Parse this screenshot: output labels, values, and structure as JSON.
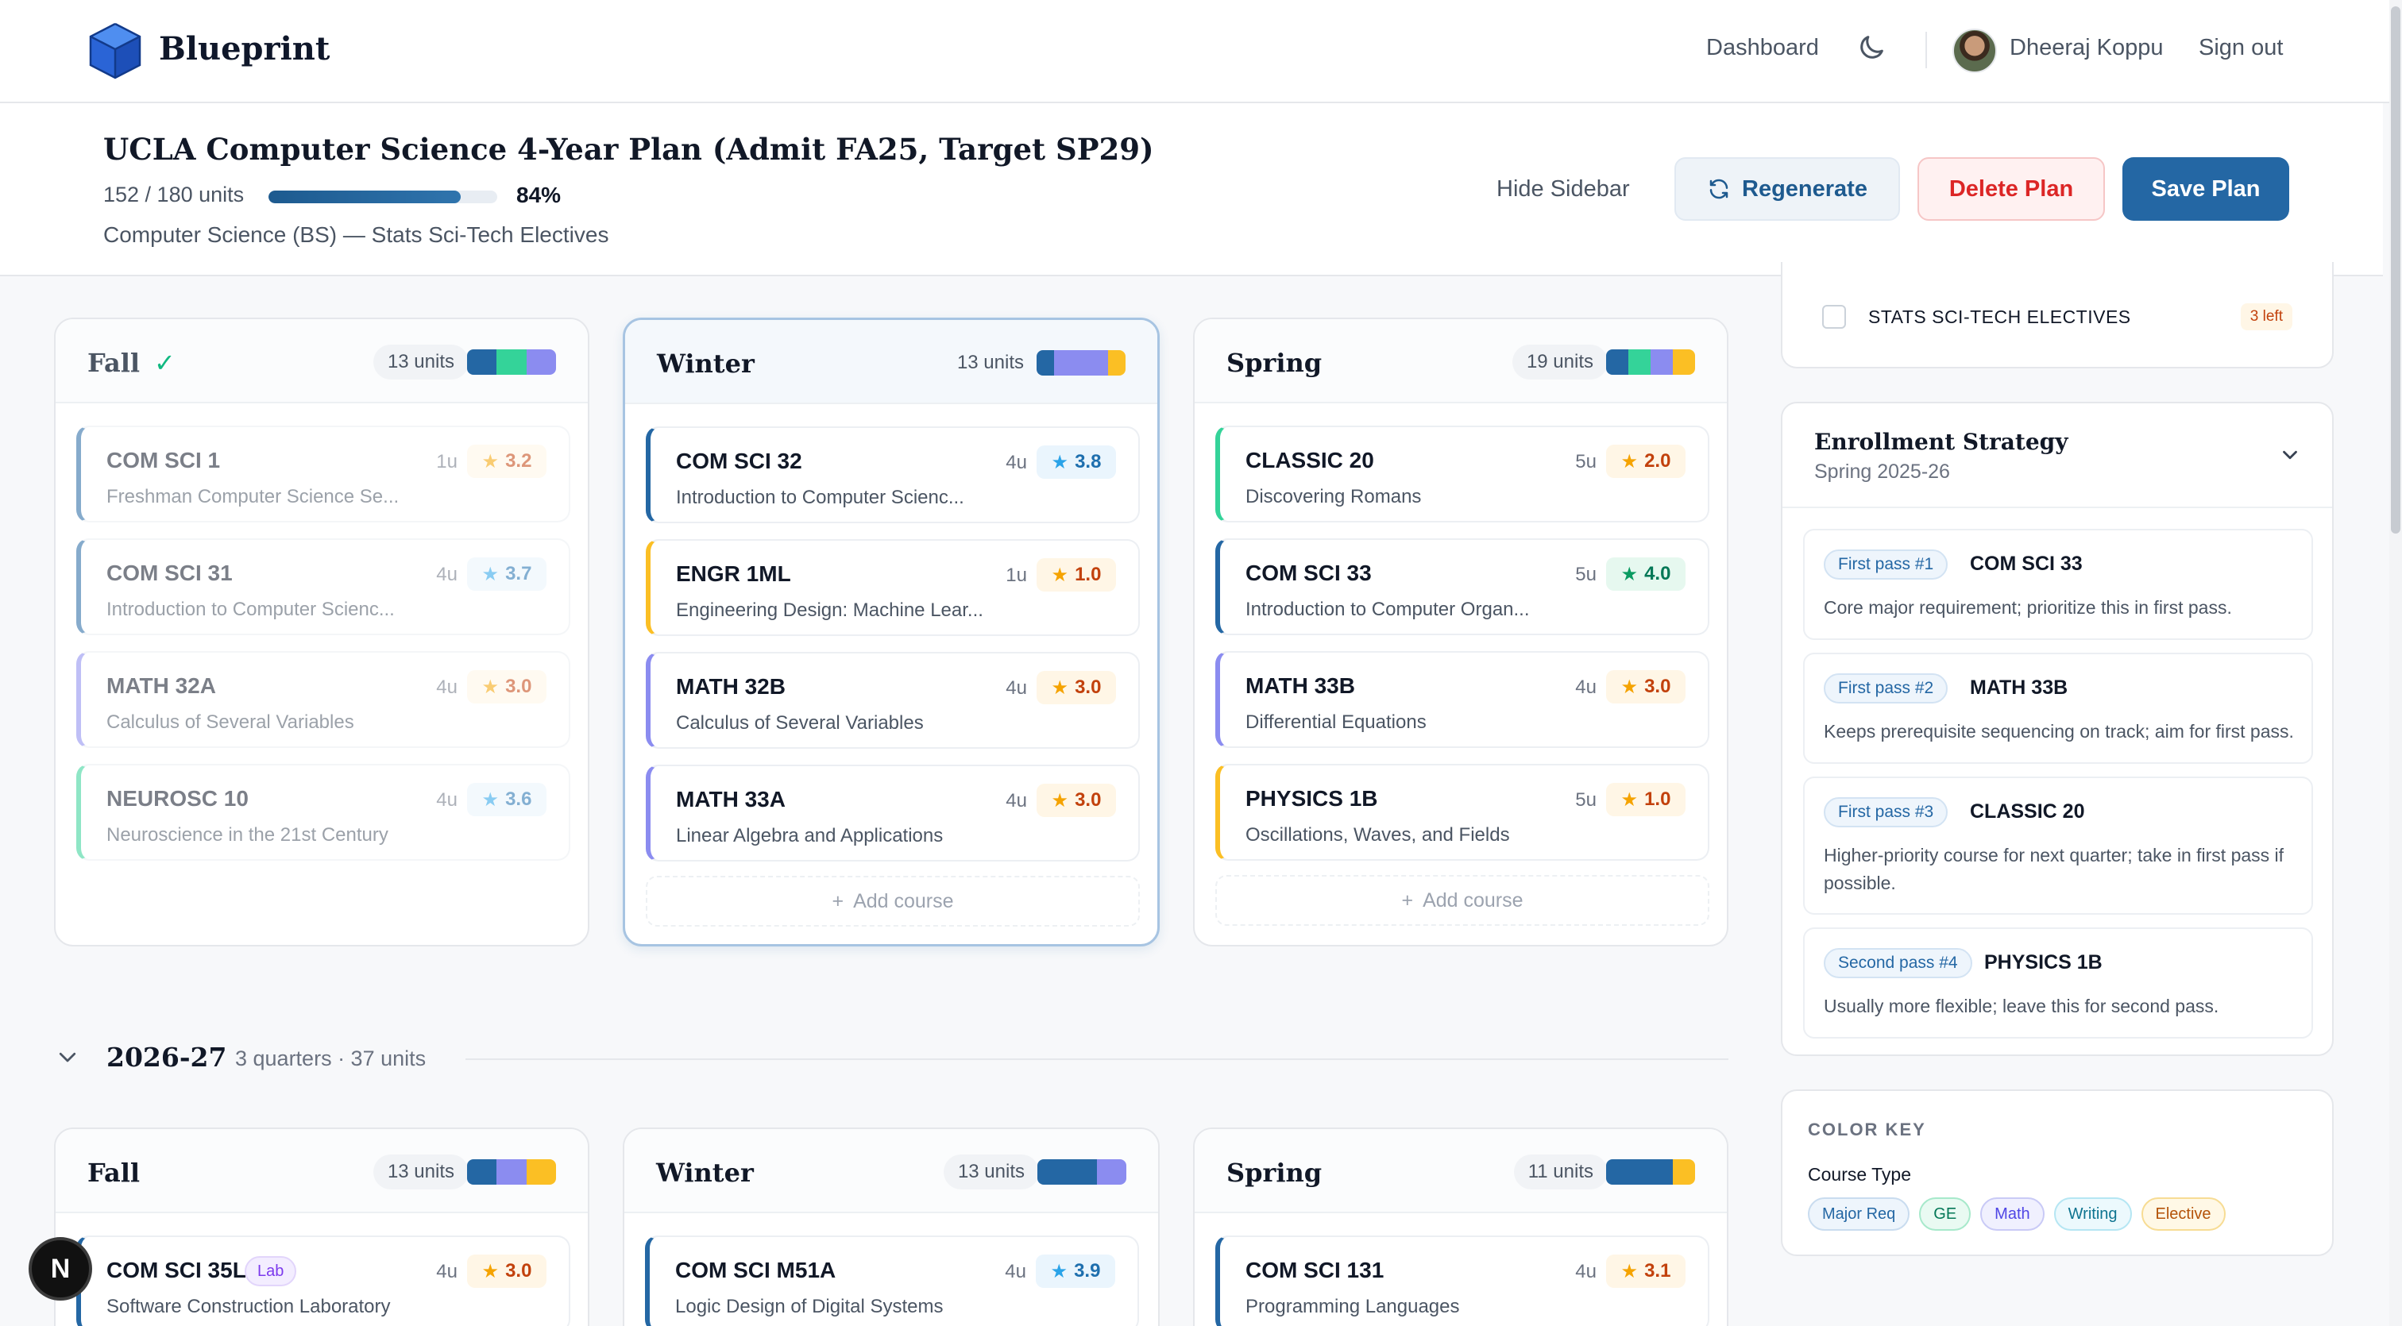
{
  "nav": {
    "brand": "Blueprint",
    "dashboard": "Dashboard",
    "user_name": "Dheeraj Koppu",
    "sign_out": "Sign out",
    "theme_icon": "moon-icon"
  },
  "plan": {
    "title": "UCLA Computer Science 4-Year Plan (Admit FA25, Target SP29)",
    "units_text": "152 / 180 units",
    "progress": 0.84,
    "percent": "84%",
    "subtitle": "Computer Science (BS) — Stats Sci-Tech Electives",
    "hide_sidebar": "Hide Sidebar",
    "regenerate": "Regenerate",
    "delete": "Delete Plan",
    "save": "Save Plan"
  },
  "colors": {
    "major": "#2467a4",
    "ge": "#34d399",
    "math": "#8b8cf0",
    "writing": "#5ec8e6",
    "elective": "#fbbf24"
  },
  "quarters_y1": [
    {
      "name": "Fall",
      "completed": true,
      "units": "13 units",
      "courses": [
        {
          "code": "COM SCI 1",
          "title": "Freshman Computer Science Se...",
          "units": "1u",
          "rating": "3.2"
        },
        {
          "code": "COM SCI 31",
          "title": "Introduction to Computer Scienc...",
          "units": "4u",
          "rating": "3.7"
        },
        {
          "code": "MATH 32A",
          "title": "Calculus of Several Variables",
          "units": "4u",
          "rating": "3.0"
        },
        {
          "code": "NEUROSC 10",
          "title": "Neuroscience in the 21st Century",
          "units": "4u",
          "rating": "3.6"
        }
      ]
    },
    {
      "name": "Winter",
      "units": "13 units",
      "add_label": "Add course",
      "courses": [
        {
          "code": "COM SCI 32",
          "title": "Introduction to Computer Scienc...",
          "units": "4u",
          "rating": "3.8"
        },
        {
          "code": "ENGR 1ML",
          "title": "Engineering Design: Machine Lear...",
          "units": "1u",
          "rating": "1.0"
        },
        {
          "code": "MATH 32B",
          "title": "Calculus of Several Variables",
          "units": "4u",
          "rating": "3.0"
        },
        {
          "code": "MATH 33A",
          "title": "Linear Algebra and Applications",
          "units": "4u",
          "rating": "3.0"
        }
      ]
    },
    {
      "name": "Spring",
      "units": "19 units",
      "add_label": "Add course",
      "courses": [
        {
          "code": "CLASSIC 20",
          "title": "Discovering Romans",
          "units": "5u",
          "rating": "2.0"
        },
        {
          "code": "COM SCI 33",
          "title": "Introduction to Computer Organ...",
          "units": "5u",
          "rating": "4.0"
        },
        {
          "code": "MATH 33B",
          "title": "Differential Equations",
          "units": "4u",
          "rating": "3.0"
        },
        {
          "code": "PHYSICS 1B",
          "title": "Oscillations, Waves, and Fields",
          "units": "5u",
          "rating": "1.0"
        }
      ]
    }
  ],
  "year2": {
    "label": "2026-27",
    "meta": "3 quarters · 37 units",
    "quarters": [
      {
        "name": "Fall",
        "units": "13 units",
        "course": {
          "code": "COM SCI 35L",
          "badge": "Lab",
          "title": "Software Construction Laboratory",
          "units": "4u",
          "rating": "3.0"
        }
      },
      {
        "name": "Winter",
        "units": "13 units",
        "course": {
          "code": "COM SCI M51A",
          "title": "Logic Design of Digital Systems",
          "units": "4u",
          "rating": "3.9"
        }
      },
      {
        "name": "Spring",
        "units": "11 units",
        "course": {
          "code": "COM SCI 131",
          "title": "Programming Languages",
          "units": "4u",
          "rating": "3.1"
        }
      }
    ]
  },
  "sidebar": {
    "requirement": {
      "label": "STATS SCI-TECH ELECTIVES",
      "left": "3 left"
    },
    "strategy": {
      "title": "Enrollment Strategy",
      "term": "Spring 2025-26",
      "items": [
        {
          "badge": "First pass #1",
          "course": "COM SCI 33",
          "text": "Core major requirement; prioritize this in first pass."
        },
        {
          "badge": "First pass #2",
          "course": "MATH 33B",
          "text": "Keeps prerequisite sequencing on track; aim for first pass."
        },
        {
          "badge": "First pass #3",
          "course": "CLASSIC 20",
          "text": "Higher-priority course for next quarter; take in first pass if possible."
        },
        {
          "badge": "Second pass #4",
          "course": "PHYSICS 1B",
          "text": "Usually more flexible; leave this for second pass."
        }
      ]
    },
    "color_key": {
      "title": "COLOR KEY",
      "subtitle": "Course Type",
      "chips": [
        "Major Req",
        "GE",
        "Math",
        "Writing",
        "Elective"
      ]
    }
  },
  "dev_badge": "N"
}
